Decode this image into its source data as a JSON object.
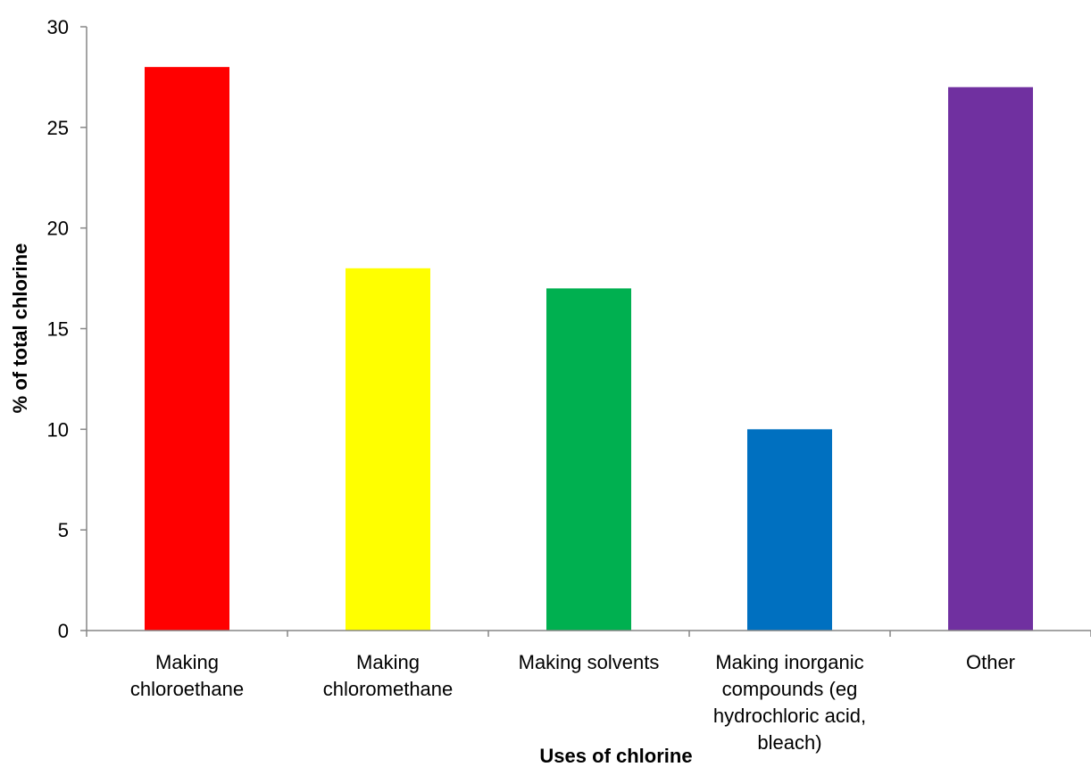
{
  "chart_data": {
    "type": "bar",
    "title": "",
    "xlabel": "Uses of chlorine",
    "ylabel": "% of total chlorine",
    "ylim": [
      0,
      30
    ],
    "yticks": [
      0,
      5,
      10,
      15,
      20,
      25,
      30
    ],
    "grid": false,
    "legend": "none",
    "categories": [
      [
        "Making",
        "chloroethane"
      ],
      [
        "Making",
        "chloromethane"
      ],
      [
        "Making solvents"
      ],
      [
        "Making inorganic",
        "compounds (eg",
        "hydrochloric acid,",
        "bleach)"
      ],
      [
        "Other"
      ]
    ],
    "values": [
      28,
      18,
      17,
      10,
      27
    ],
    "colors": [
      "#ff0000",
      "#ffff00",
      "#00b050",
      "#0070c0",
      "#7030a0"
    ]
  }
}
